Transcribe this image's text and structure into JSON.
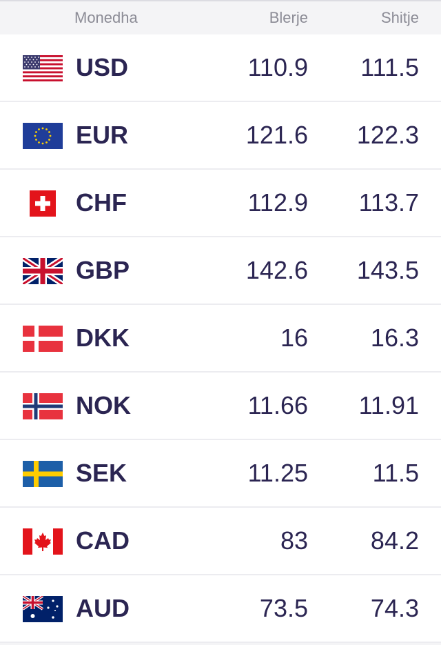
{
  "header": {
    "currency": "Monedha",
    "buy": "Blerje",
    "sell": "Shitje"
  },
  "colors": {
    "text": "#2b2552",
    "header_text": "#8c8c96",
    "row_bg": "#ffffff",
    "divider": "#ececf0"
  },
  "rates": [
    {
      "code": "USD",
      "flag": "us-flag-icon",
      "buy": "110.9",
      "sell": "111.5"
    },
    {
      "code": "EUR",
      "flag": "eu-flag-icon",
      "buy": "121.6",
      "sell": "122.3"
    },
    {
      "code": "CHF",
      "flag": "ch-flag-icon",
      "buy": "112.9",
      "sell": "113.7"
    },
    {
      "code": "GBP",
      "flag": "gb-flag-icon",
      "buy": "142.6",
      "sell": "143.5"
    },
    {
      "code": "DKK",
      "flag": "dk-flag-icon",
      "buy": "16",
      "sell": "16.3"
    },
    {
      "code": "NOK",
      "flag": "no-flag-icon",
      "buy": "11.66",
      "sell": "11.91"
    },
    {
      "code": "SEK",
      "flag": "se-flag-icon",
      "buy": "11.25",
      "sell": "11.5"
    },
    {
      "code": "CAD",
      "flag": "ca-flag-icon",
      "buy": "83",
      "sell": "84.2"
    },
    {
      "code": "AUD",
      "flag": "au-flag-icon",
      "buy": "73.5",
      "sell": "74.3"
    }
  ]
}
